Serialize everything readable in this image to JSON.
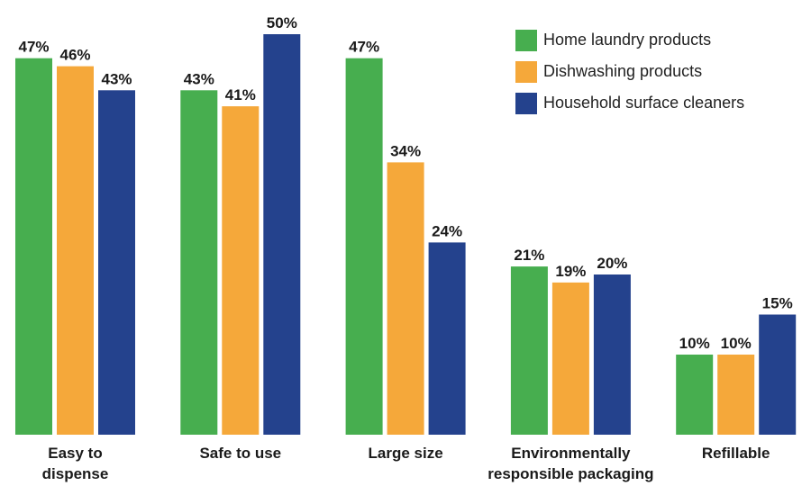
{
  "chart_data": {
    "type": "bar",
    "categories": [
      "Easy to\ndispense",
      "Safe to use",
      "Large size",
      "Environmentally\nresponsible packaging",
      "Refillable"
    ],
    "series": [
      {
        "name": "Home laundry products",
        "color": "#47ae4f",
        "values": [
          47,
          43,
          47,
          21,
          10
        ],
        "value_labels": [
          "47%",
          "43%",
          "47%",
          "21%",
          "10%"
        ]
      },
      {
        "name": "Dishwashing products",
        "color": "#f5a83a",
        "values": [
          46,
          41,
          34,
          19,
          10
        ],
        "value_labels": [
          "46%",
          "41%",
          "34%",
          "19%",
          "10%"
        ]
      },
      {
        "name": "Household surface cleaners",
        "color": "#24428d",
        "values": [
          43,
          50,
          24,
          20,
          15
        ],
        "value_labels": [
          "43%",
          "50%",
          "24%",
          "20%",
          "15%"
        ]
      }
    ],
    "legend": "top-right"
  }
}
